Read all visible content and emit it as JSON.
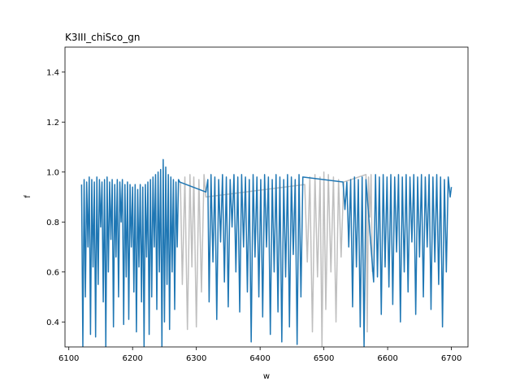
{
  "chart_data": {
    "type": "line",
    "title": "K3III_chiSco_gn",
    "xlabel": "w",
    "ylabel": "f",
    "xlim": [
      6094,
      6726
    ],
    "ylim": [
      0.3,
      1.5
    ],
    "xticks": [
      6100,
      6200,
      6300,
      6400,
      6500,
      6600,
      6700
    ],
    "yticks": [
      0.4,
      0.6,
      0.8,
      1.0,
      1.2,
      1.4
    ],
    "xtick_labels": [
      "6100",
      "6200",
      "6300",
      "6400",
      "6500",
      "6600",
      "6700"
    ],
    "ytick_labels": [
      "0.4",
      "0.6",
      "0.8",
      "1.0",
      "1.2",
      "1.4"
    ],
    "grid": false,
    "legend": "none",
    "colors": {
      "masked": "#bfbfbf",
      "spectrum": "#1f77b4"
    },
    "series": [
      {
        "role": "masked",
        "x": [
          6275,
          6278,
          6282,
          6286,
          6290,
          6293,
          6296,
          6300,
          6304,
          6308,
          6312,
          6315,
          6470,
          6474,
          6478,
          6482,
          6486,
          6490,
          6494,
          6497,
          6500,
          6503,
          6507,
          6511,
          6515,
          6519,
          6523,
          6527,
          6531,
          6566,
          6568,
          6570,
          6572,
          6574,
          6576
        ],
        "y": [
          0.96,
          0.55,
          0.98,
          0.37,
          0.99,
          0.62,
          0.98,
          0.38,
          0.97,
          0.52,
          0.99,
          0.9,
          0.95,
          0.64,
          0.98,
          0.36,
          0.99,
          0.58,
          0.98,
          0.3,
          1.0,
          0.45,
          0.99,
          0.6,
          0.98,
          0.4,
          0.97,
          0.66,
          0.96,
          0.99,
          0.36,
          0.98,
          0.82,
          0.99,
          0.6
        ]
      },
      {
        "role": "spectrum",
        "x": [
          6120,
          6122,
          6124,
          6126,
          6128,
          6130,
          6132,
          6134,
          6136,
          6138,
          6140,
          6142,
          6144,
          6146,
          6148,
          6150,
          6152,
          6154,
          6156,
          6158,
          6160,
          6162,
          6164,
          6166,
          6168,
          6170,
          6172,
          6174,
          6176,
          6178,
          6180,
          6182,
          6184,
          6186,
          6188,
          6190,
          6192,
          6194,
          6196,
          6198,
          6200,
          6202,
          6204,
          6206,
          6208,
          6210,
          6212,
          6214,
          6216,
          6218,
          6220,
          6222,
          6224,
          6226,
          6228,
          6230,
          6232,
          6234,
          6236,
          6238,
          6240,
          6242,
          6244,
          6246,
          6248,
          6250,
          6252,
          6254,
          6256,
          6258,
          6260,
          6262,
          6264,
          6266,
          6268,
          6270,
          6272,
          6274,
          6315,
          6318,
          6320,
          6323,
          6326,
          6329,
          6332,
          6335,
          6338,
          6341,
          6344,
          6347,
          6350,
          6353,
          6356,
          6359,
          6362,
          6365,
          6368,
          6371,
          6374,
          6377,
          6380,
          6383,
          6386,
          6389,
          6392,
          6395,
          6398,
          6401,
          6404,
          6407,
          6410,
          6413,
          6416,
          6419,
          6422,
          6425,
          6428,
          6431,
          6434,
          6437,
          6440,
          6443,
          6446,
          6449,
          6452,
          6455,
          6458,
          6461,
          6464,
          6467,
          6530,
          6533,
          6536,
          6539,
          6542,
          6545,
          6548,
          6551,
          6554,
          6557,
          6560,
          6563,
          6566,
          6578,
          6581,
          6584,
          6587,
          6590,
          6593,
          6596,
          6599,
          6602,
          6605,
          6608,
          6611,
          6614,
          6617,
          6620,
          6623,
          6626,
          6629,
          6632,
          6635,
          6638,
          6641,
          6644,
          6647,
          6650,
          6653,
          6656,
          6659,
          6662,
          6665,
          6668,
          6671,
          6674,
          6677,
          6680,
          6683,
          6686,
          6689,
          6692,
          6695,
          6698,
          6700
        ],
        "y": [
          0.95,
          0.3,
          0.97,
          0.5,
          0.96,
          0.7,
          0.98,
          0.35,
          0.97,
          0.62,
          0.96,
          0.34,
          0.98,
          0.55,
          0.97,
          0.78,
          0.96,
          0.48,
          0.97,
          0.3,
          0.98,
          0.6,
          0.96,
          0.73,
          0.97,
          0.38,
          0.95,
          0.66,
          0.97,
          0.5,
          0.96,
          0.8,
          0.97,
          0.39,
          0.95,
          0.58,
          0.96,
          0.41,
          0.95,
          0.7,
          0.94,
          0.52,
          0.95,
          0.36,
          0.93,
          0.62,
          0.95,
          0.48,
          0.94,
          0.3,
          0.95,
          0.66,
          0.96,
          0.35,
          0.97,
          0.5,
          0.98,
          0.7,
          0.99,
          0.45,
          1.0,
          0.6,
          1.01,
          0.3,
          1.05,
          0.4,
          1.02,
          0.55,
          0.99,
          0.37,
          0.98,
          0.6,
          0.97,
          0.45,
          0.96,
          0.7,
          0.97,
          0.96,
          0.92,
          0.97,
          0.48,
          0.99,
          0.64,
          0.98,
          0.41,
          0.97,
          0.72,
          0.99,
          0.56,
          0.98,
          0.46,
          0.97,
          0.78,
          0.99,
          0.6,
          0.98,
          0.44,
          0.99,
          0.7,
          0.98,
          0.52,
          0.97,
          0.32,
          0.99,
          0.66,
          0.98,
          0.5,
          0.97,
          0.42,
          0.99,
          0.7,
          0.98,
          0.35,
          0.97,
          0.6,
          0.99,
          0.44,
          0.98,
          0.32,
          0.97,
          0.58,
          0.99,
          0.38,
          0.98,
          0.67,
          0.97,
          0.31,
          0.99,
          0.5,
          0.98,
          0.96,
          0.85,
          0.96,
          0.7,
          0.97,
          0.46,
          0.98,
          0.62,
          0.97,
          0.38,
          0.98,
          0.3,
          0.97,
          0.56,
          0.99,
          0.58,
          0.98,
          0.43,
          0.99,
          0.62,
          0.98,
          0.54,
          0.99,
          0.47,
          0.98,
          0.68,
          0.99,
          0.4,
          0.98,
          0.6,
          0.99,
          0.52,
          0.98,
          0.72,
          0.99,
          0.43,
          0.98,
          0.66,
          0.99,
          0.5,
          0.98,
          0.7,
          0.99,
          0.45,
          0.98,
          0.64,
          0.99,
          0.55,
          0.98,
          0.38,
          0.97,
          0.6,
          0.98,
          0.9,
          0.94
        ]
      }
    ]
  }
}
